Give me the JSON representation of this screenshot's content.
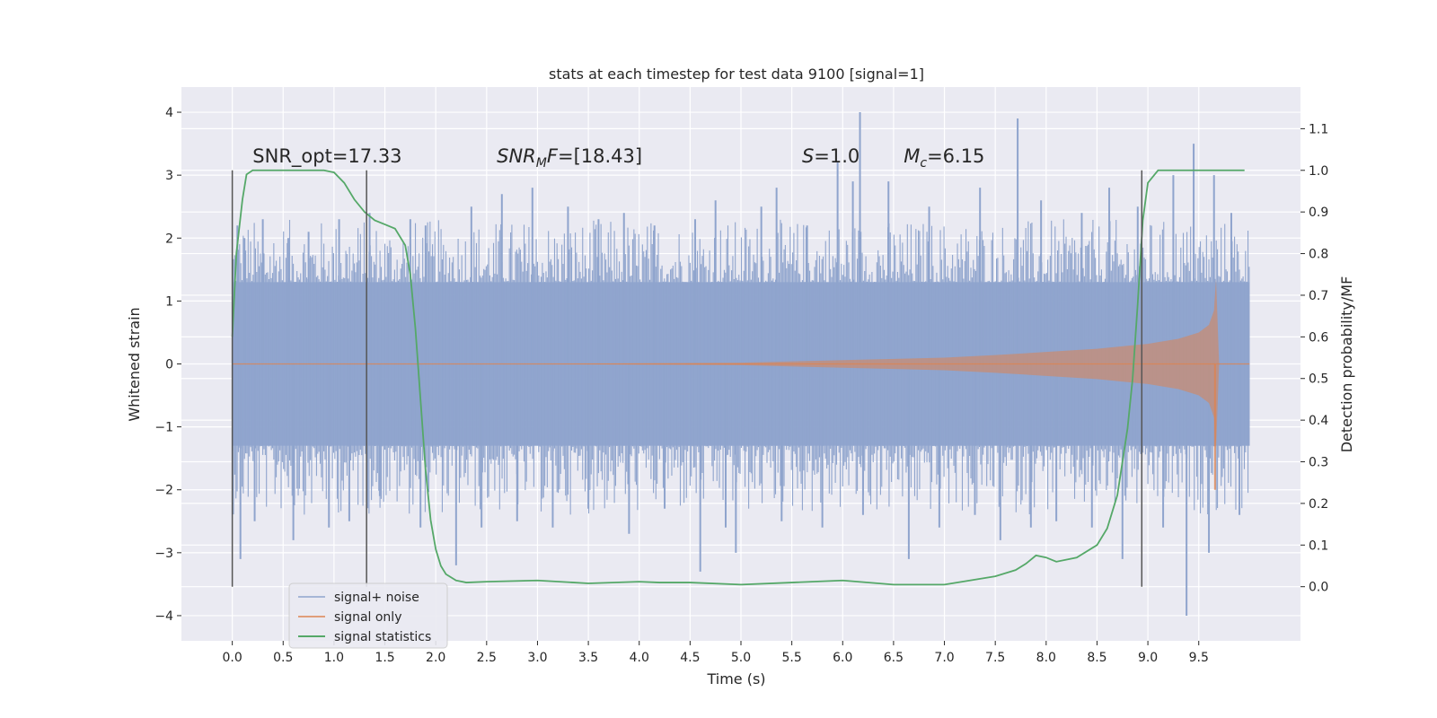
{
  "chart_data": {
    "type": "line",
    "title": "stats at each timestep for test data 9100 [signal=1]",
    "xlabel": "Time (s)",
    "ylabel": "Whitened strain",
    "y2label": "Detection probability/MF",
    "xlim": [
      -0.5,
      10.5
    ],
    "ylim": [
      -4.4,
      4.4
    ],
    "y2lim": [
      -0.13,
      1.2
    ],
    "xticks": [
      0.0,
      0.5,
      1.0,
      1.5,
      2.0,
      2.5,
      3.0,
      3.5,
      4.0,
      4.5,
      5.0,
      5.5,
      6.0,
      6.5,
      7.0,
      7.5,
      8.0,
      8.5,
      9.0,
      9.5
    ],
    "xtick_labels": [
      "0.0",
      "0.5",
      "1.0",
      "1.5",
      "2.0",
      "2.5",
      "3.0",
      "3.5",
      "4.0",
      "4.5",
      "5.0",
      "5.5",
      "6.0",
      "6.5",
      "7.0",
      "7.5",
      "8.0",
      "8.5",
      "9.0",
      "9.5"
    ],
    "yticks": [
      -4,
      -3,
      -2,
      -1,
      0,
      1,
      2,
      3,
      4
    ],
    "ytick_labels": [
      "−4",
      "−3",
      "−2",
      "−1",
      "0",
      "1",
      "2",
      "3",
      "4"
    ],
    "y2ticks": [
      0.0,
      0.1,
      0.2,
      0.3,
      0.4,
      0.5,
      0.6,
      0.7,
      0.8,
      0.9,
      1.0,
      1.1
    ],
    "y2tick_labels": [
      "0.0",
      "0.1",
      "0.2",
      "0.3",
      "0.4",
      "0.5",
      "0.6",
      "0.7",
      "0.8",
      "0.9",
      "1.0",
      "1.1"
    ],
    "grid": true,
    "legend_position": "bottom-left",
    "series": [
      {
        "name": "signal+ noise",
        "color": "#8fa4cd",
        "axis": "left",
        "envelope": {
          "t": [
            0.0,
            10.0
          ],
          "upper": [
            1.3,
            1.3
          ],
          "lower": [
            -1.3,
            -1.3
          ]
        },
        "spikes_up": [
          [
            0.05,
            2.2
          ],
          [
            0.12,
            2.0
          ],
          [
            0.3,
            2.3
          ],
          [
            0.55,
            2.0
          ],
          [
            0.75,
            2.1
          ],
          [
            1.05,
            2.3
          ],
          [
            1.35,
            2.4
          ],
          [
            1.75,
            2.3
          ],
          [
            1.9,
            2.2
          ],
          [
            2.35,
            2.5
          ],
          [
            2.65,
            2.7
          ],
          [
            2.95,
            2.8
          ],
          [
            3.3,
            2.5
          ],
          [
            3.6,
            2.3
          ],
          [
            3.85,
            2.4
          ],
          [
            4.15,
            2.2
          ],
          [
            4.55,
            2.3
          ],
          [
            4.75,
            2.6
          ],
          [
            5.2,
            2.5
          ],
          [
            5.35,
            2.8
          ],
          [
            5.65,
            2.2
          ],
          [
            5.95,
            3.2
          ],
          [
            6.1,
            2.9
          ],
          [
            6.17,
            4.0
          ],
          [
            6.45,
            2.9
          ],
          [
            6.85,
            2.5
          ],
          [
            7.35,
            2.8
          ],
          [
            7.72,
            3.9
          ],
          [
            7.95,
            2.6
          ],
          [
            8.35,
            2.4
          ],
          [
            8.62,
            2.8
          ],
          [
            8.9,
            2.5
          ],
          [
            9.25,
            3.0
          ],
          [
            9.45,
            3.5
          ],
          [
            9.65,
            3.0
          ],
          [
            9.82,
            2.4
          ]
        ],
        "spikes_down": [
          [
            0.08,
            -3.1
          ],
          [
            0.22,
            -2.5
          ],
          [
            0.6,
            -2.8
          ],
          [
            0.95,
            -2.6
          ],
          [
            1.15,
            -2.5
          ],
          [
            1.45,
            -2.1
          ],
          [
            1.85,
            -2.6
          ],
          [
            2.2,
            -3.2
          ],
          [
            2.45,
            -2.6
          ],
          [
            2.8,
            -2.5
          ],
          [
            3.15,
            -2.6
          ],
          [
            3.5,
            -2.3
          ],
          [
            3.9,
            -2.7
          ],
          [
            4.25,
            -2.3
          ],
          [
            4.6,
            -3.3
          ],
          [
            4.85,
            -2.6
          ],
          [
            4.95,
            -3.0
          ],
          [
            5.4,
            -2.5
          ],
          [
            5.8,
            -2.6
          ],
          [
            6.2,
            -2.4
          ],
          [
            6.65,
            -3.1
          ],
          [
            6.95,
            -2.6
          ],
          [
            7.3,
            -2.4
          ],
          [
            7.55,
            -2.8
          ],
          [
            7.85,
            -2.6
          ],
          [
            8.1,
            -2.5
          ],
          [
            8.45,
            -2.6
          ],
          [
            8.75,
            -3.1
          ],
          [
            9.15,
            -2.6
          ],
          [
            9.38,
            -4.0
          ],
          [
            9.6,
            -3.0
          ],
          [
            9.9,
            -2.4
          ]
        ]
      },
      {
        "name": "signal only",
        "color": "#dd8452",
        "axis": "left",
        "amplitude": {
          "t": [
            0.0,
            3.0,
            5.0,
            6.0,
            7.0,
            7.5,
            8.0,
            8.5,
            9.0,
            9.3,
            9.5,
            9.6,
            9.65,
            9.67,
            9.7,
            10.0
          ],
          "a": [
            0.0,
            0.0,
            0.02,
            0.06,
            0.1,
            0.14,
            0.19,
            0.24,
            0.32,
            0.4,
            0.5,
            0.62,
            0.85,
            1.35,
            0.0,
            0.0
          ]
        },
        "final_negative_peak": -2.0
      },
      {
        "name": "signal statistics",
        "color": "#55a868",
        "axis": "right",
        "x": [
          0.0,
          0.04,
          0.1,
          0.14,
          0.2,
          0.3,
          0.5,
          0.7,
          0.9,
          1.0,
          1.1,
          1.2,
          1.3,
          1.4,
          1.5,
          1.6,
          1.7,
          1.75,
          1.8,
          1.85,
          1.9,
          1.95,
          2.0,
          2.05,
          2.1,
          2.2,
          2.3,
          2.5,
          3.0,
          3.5,
          4.0,
          4.2,
          4.5,
          5.0,
          5.5,
          6.0,
          6.5,
          7.0,
          7.5,
          7.7,
          7.8,
          7.9,
          8.0,
          8.1,
          8.3,
          8.5,
          8.6,
          8.7,
          8.8,
          8.85,
          8.9,
          8.95,
          9.0,
          9.1,
          9.3,
          9.5,
          9.95
        ],
        "y": [
          0.6,
          0.8,
          0.93,
          0.99,
          1.0,
          1.0,
          1.0,
          1.0,
          1.0,
          0.995,
          0.97,
          0.93,
          0.9,
          0.88,
          0.87,
          0.86,
          0.82,
          0.75,
          0.62,
          0.45,
          0.28,
          0.16,
          0.09,
          0.05,
          0.03,
          0.015,
          0.01,
          0.012,
          0.015,
          0.008,
          0.012,
          0.01,
          0.01,
          0.005,
          0.01,
          0.015,
          0.005,
          0.005,
          0.025,
          0.04,
          0.055,
          0.075,
          0.07,
          0.06,
          0.07,
          0.1,
          0.14,
          0.22,
          0.38,
          0.5,
          0.68,
          0.88,
          0.97,
          1.0,
          1.0,
          1.0,
          1.0
        ]
      }
    ],
    "vlines": [
      0.0,
      1.32,
      8.94
    ],
    "vline_y2_range": [
      0.0,
      1.0
    ],
    "annotations": [
      {
        "pre": "SNR_opt=17.33",
        "x": 0.2
      },
      {
        "ital": "SNR",
        "sub": "M",
        "ital2": "F",
        "post": "=[18.43]",
        "x": 2.6
      },
      {
        "ital": "S",
        "post": "=1.0",
        "x": 5.6
      },
      {
        "ital": "M",
        "sub": "c",
        "post": "=6.15",
        "x": 6.6
      }
    ],
    "annotation_y": 3.2
  }
}
